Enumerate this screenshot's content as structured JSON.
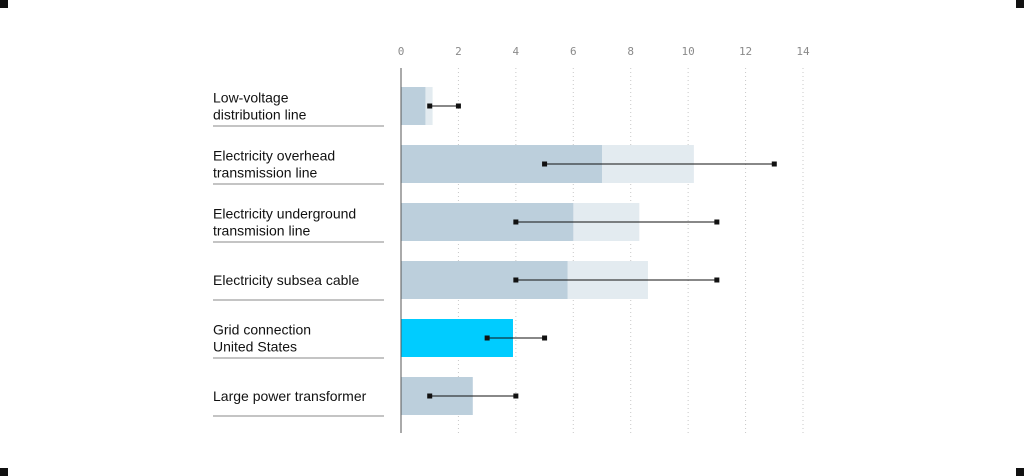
{
  "chart_data": {
    "type": "bar",
    "orientation": "horizontal",
    "categories": [
      "Low-voltage\ndistribution line",
      "Electricity overhead\ntransmission line",
      "Electricity underground\ntransmision line",
      "Electricity subsea cable",
      "Grid connection\nUnited States",
      "Large power transformer"
    ],
    "series": [
      {
        "values": [
          0.85,
          7.0,
          6.0,
          5.8,
          3.9,
          2.5
        ],
        "colors": [
          "#bccfdc",
          "#bccfdc",
          "#bccfdc",
          "#bccfdc",
          "#00ccff",
          "#bccfdc"
        ]
      },
      {
        "values": [
          1.1,
          10.2,
          8.3,
          8.6,
          null,
          null
        ],
        "color": "#e3ebf0"
      }
    ],
    "ranges": {
      "low": [
        1,
        5,
        4,
        4,
        3,
        1
      ],
      "high": [
        2,
        13,
        11,
        11,
        5,
        4
      ],
      "color": "#111111"
    },
    "xlim": [
      0,
      14
    ],
    "xticks": [
      0,
      2,
      4,
      6,
      8,
      10,
      12,
      14
    ],
    "grid": true
  }
}
